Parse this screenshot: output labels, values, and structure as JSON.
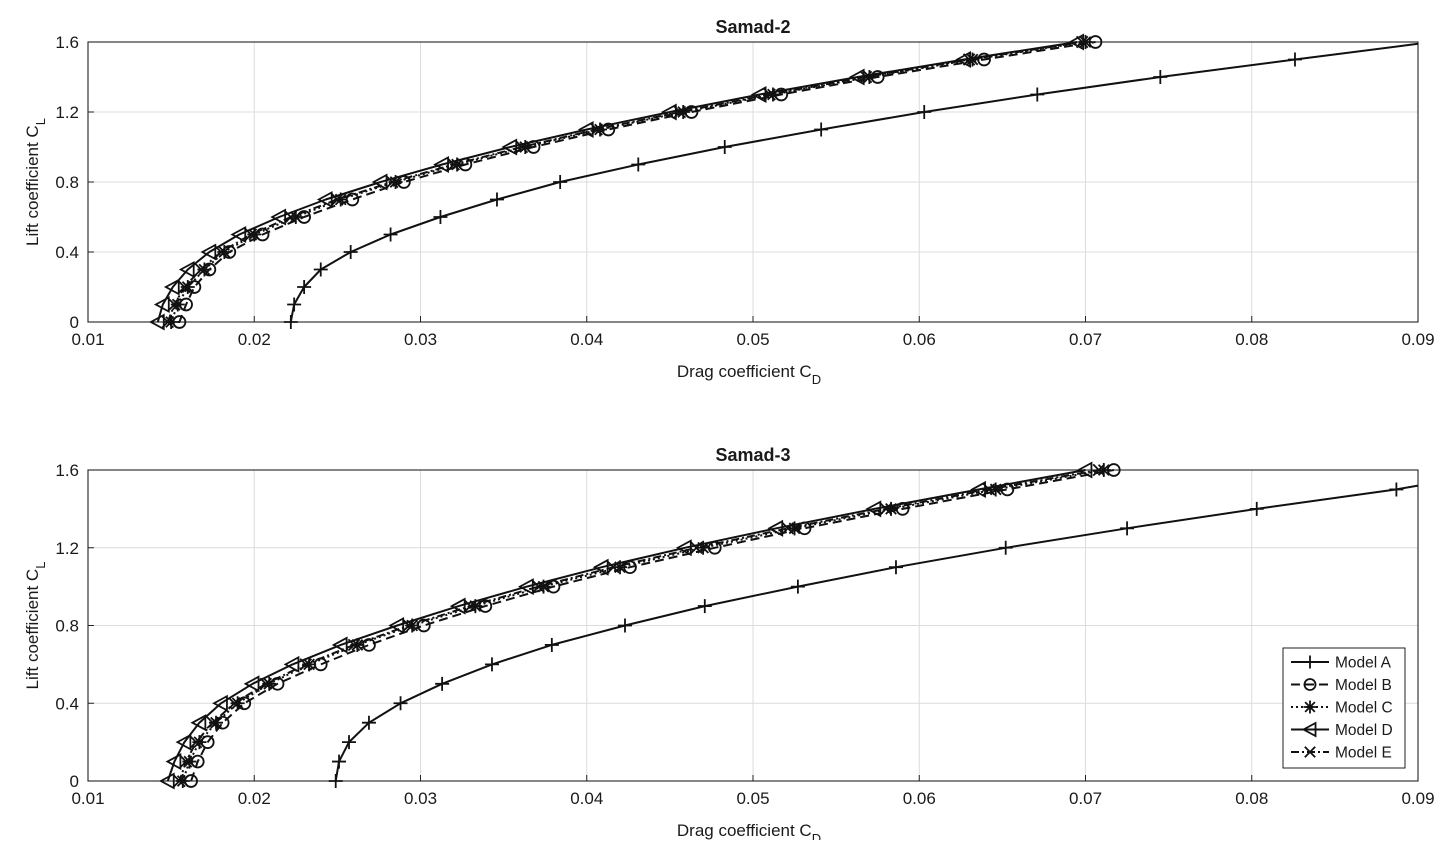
{
  "chart_data": [
    {
      "type": "line",
      "title": "Samad-2",
      "xlabel": "Drag coefficient C",
      "xlabel_sub": "D",
      "ylabel": "Lift coefficient C",
      "ylabel_sub": "L",
      "xlim": [
        0.01,
        0.09
      ],
      "ylim": [
        0,
        1.6
      ],
      "xticks": [
        "0.01",
        "0.02",
        "0.03",
        "0.04",
        "0.05",
        "0.06",
        "0.07",
        "0.08",
        "0.09"
      ],
      "yticks": [
        "0",
        "0.4",
        "0.8",
        "1.2",
        "1.6"
      ],
      "grid": true,
      "legend": false,
      "series": [
        {
          "name": "Model A",
          "marker": "plus",
          "dash": "solid",
          "x": [
            0.0222,
            0.0222,
            0.0224,
            0.023,
            0.024,
            0.0258,
            0.0282,
            0.0312,
            0.0346,
            0.0384,
            0.0431,
            0.0483,
            0.0541,
            0.0603,
            0.0671,
            0.0745,
            0.0826,
            0.09
          ],
          "y": [
            0.0,
            0.0,
            0.1,
            0.2,
            0.3,
            0.4,
            0.5,
            0.6,
            0.7,
            0.8,
            0.9,
            1.0,
            1.1,
            1.2,
            1.3,
            1.4,
            1.5,
            1.59
          ]
        },
        {
          "name": "Model B",
          "marker": "circle",
          "dash": "dashed",
          "x": [
            0.0154,
            0.0155,
            0.0159,
            0.0164,
            0.0173,
            0.0185,
            0.0205,
            0.023,
            0.0259,
            0.029,
            0.0327,
            0.0368,
            0.0413,
            0.0463,
            0.0517,
            0.0575,
            0.0639,
            0.0706
          ],
          "y": [
            0.0,
            0.0,
            0.1,
            0.2,
            0.3,
            0.4,
            0.5,
            0.6,
            0.7,
            0.8,
            0.9,
            1.0,
            1.1,
            1.2,
            1.3,
            1.4,
            1.5,
            1.6
          ]
        },
        {
          "name": "Model C",
          "marker": "star",
          "dash": "dotted",
          "x": [
            0.0149,
            0.015,
            0.0154,
            0.016,
            0.017,
            0.0182,
            0.02,
            0.0225,
            0.0252,
            0.0285,
            0.0322,
            0.0363,
            0.0408,
            0.0458,
            0.0512,
            0.057,
            0.0632,
            0.07
          ],
          "y": [
            0.0,
            0.0,
            0.1,
            0.2,
            0.3,
            0.4,
            0.5,
            0.6,
            0.7,
            0.8,
            0.9,
            1.0,
            1.1,
            1.2,
            1.3,
            1.4,
            1.5,
            1.6
          ]
        },
        {
          "name": "Model D",
          "marker": "triangle-left",
          "dash": "solid",
          "x": [
            0.0142,
            0.0142,
            0.0145,
            0.0151,
            0.016,
            0.0173,
            0.0191,
            0.0215,
            0.0243,
            0.0276,
            0.0313,
            0.0354,
            0.04,
            0.045,
            0.0504,
            0.0563,
            0.0627,
            0.0695
          ],
          "y": [
            0.0,
            0.0,
            0.1,
            0.2,
            0.3,
            0.4,
            0.5,
            0.6,
            0.7,
            0.8,
            0.9,
            1.0,
            1.1,
            1.2,
            1.3,
            1.4,
            1.5,
            1.6
          ]
        },
        {
          "name": "Model E",
          "marker": "x",
          "dash": "dashdot",
          "x": [
            0.0148,
            0.0148,
            0.0152,
            0.0158,
            0.0168,
            0.018,
            0.0198,
            0.0222,
            0.025,
            0.0283,
            0.032,
            0.0361,
            0.0406,
            0.0456,
            0.051,
            0.0568,
            0.063,
            0.0698
          ],
          "y": [
            0.0,
            0.0,
            0.1,
            0.2,
            0.3,
            0.4,
            0.5,
            0.6,
            0.7,
            0.8,
            0.9,
            1.0,
            1.1,
            1.2,
            1.3,
            1.4,
            1.5,
            1.6
          ]
        }
      ]
    },
    {
      "type": "line",
      "title": "Samad-3",
      "xlabel": "Drag coefficient C",
      "xlabel_sub": "D",
      "ylabel": "Lift coefficient C",
      "ylabel_sub": "L",
      "xlim": [
        0.01,
        0.09
      ],
      "ylim": [
        0,
        1.6
      ],
      "xticks": [
        "0.01",
        "0.02",
        "0.03",
        "0.04",
        "0.05",
        "0.06",
        "0.07",
        "0.08",
        "0.09"
      ],
      "yticks": [
        "0",
        "0.4",
        "0.8",
        "1.2",
        "1.6"
      ],
      "grid": true,
      "legend": true,
      "legend_position": "bottom-right",
      "series": [
        {
          "name": "Model A",
          "marker": "plus",
          "dash": "solid",
          "x": [
            0.0249,
            0.0249,
            0.0251,
            0.0257,
            0.0269,
            0.0288,
            0.0313,
            0.0343,
            0.0379,
            0.0423,
            0.0471,
            0.0527,
            0.0586,
            0.0652,
            0.0725,
            0.0803,
            0.0887,
            0.09
          ],
          "y": [
            0.0,
            0.0,
            0.1,
            0.2,
            0.3,
            0.4,
            0.5,
            0.6,
            0.7,
            0.8,
            0.9,
            1.0,
            1.1,
            1.2,
            1.3,
            1.4,
            1.5,
            1.52
          ]
        },
        {
          "name": "Model B",
          "marker": "circle",
          "dash": "dashed",
          "x": [
            0.0162,
            0.0162,
            0.0166,
            0.0172,
            0.0181,
            0.0194,
            0.0214,
            0.024,
            0.0269,
            0.0302,
            0.0339,
            0.038,
            0.0426,
            0.0477,
            0.0531,
            0.059,
            0.0653,
            0.0717
          ],
          "y": [
            0.0,
            0.0,
            0.1,
            0.2,
            0.3,
            0.4,
            0.5,
            0.6,
            0.7,
            0.8,
            0.9,
            1.0,
            1.1,
            1.2,
            1.3,
            1.4,
            1.5,
            1.6
          ]
        },
        {
          "name": "Model C",
          "marker": "star",
          "dash": "dotted",
          "x": [
            0.0156,
            0.0157,
            0.0161,
            0.0167,
            0.0177,
            0.019,
            0.0209,
            0.0233,
            0.0262,
            0.0295,
            0.0333,
            0.0374,
            0.042,
            0.047,
            0.0525,
            0.0583,
            0.0646,
            0.0711
          ],
          "y": [
            0.0,
            0.0,
            0.1,
            0.2,
            0.3,
            0.4,
            0.5,
            0.6,
            0.7,
            0.8,
            0.9,
            1.0,
            1.1,
            1.2,
            1.3,
            1.4,
            1.5,
            1.6
          ]
        },
        {
          "name": "Model D",
          "marker": "triangle-left",
          "dash": "solid",
          "x": [
            0.0148,
            0.0148,
            0.0152,
            0.0158,
            0.0167,
            0.018,
            0.0199,
            0.0223,
            0.0252,
            0.0286,
            0.0323,
            0.0364,
            0.0409,
            0.0459,
            0.0514,
            0.0573,
            0.0636,
            0.07
          ],
          "y": [
            0.0,
            0.0,
            0.1,
            0.2,
            0.3,
            0.4,
            0.5,
            0.6,
            0.7,
            0.8,
            0.9,
            1.0,
            1.1,
            1.2,
            1.3,
            1.4,
            1.5,
            1.6
          ]
        },
        {
          "name": "Model E",
          "marker": "x",
          "dash": "dashdot",
          "x": [
            0.0154,
            0.0155,
            0.0159,
            0.0165,
            0.0175,
            0.0188,
            0.0207,
            0.0231,
            0.026,
            0.0293,
            0.033,
            0.0371,
            0.0416,
            0.0466,
            0.0521,
            0.058,
            0.0642,
            0.0708
          ],
          "y": [
            0.0,
            0.0,
            0.1,
            0.2,
            0.3,
            0.4,
            0.5,
            0.6,
            0.7,
            0.8,
            0.9,
            1.0,
            1.1,
            1.2,
            1.3,
            1.4,
            1.5,
            1.6
          ]
        }
      ]
    }
  ]
}
